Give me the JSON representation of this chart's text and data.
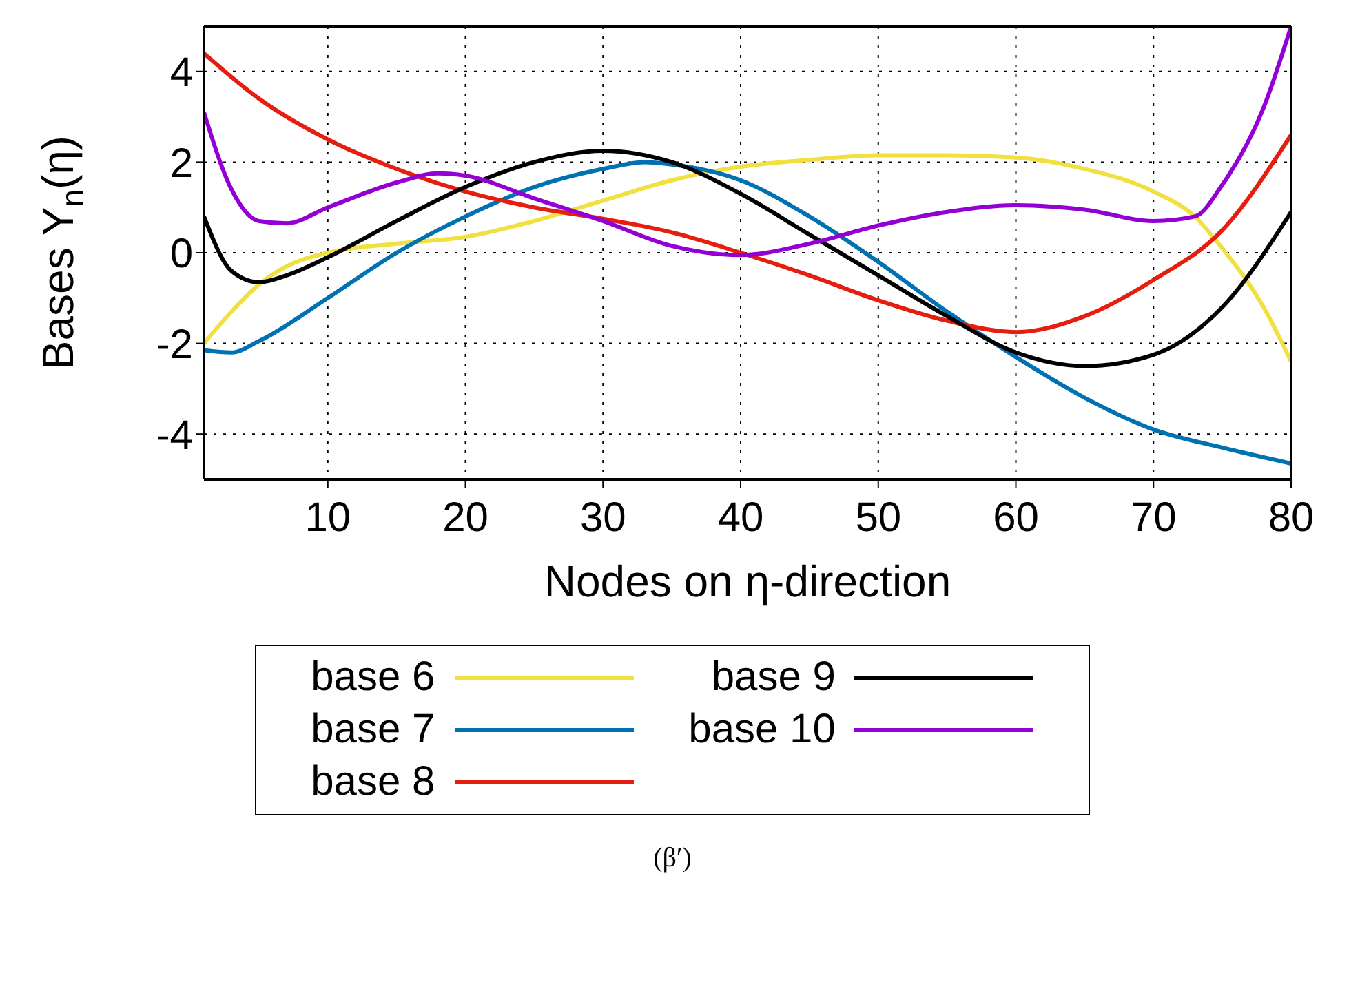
{
  "chart_data": {
    "type": "line",
    "xlabel": "Nodes on η-direction",
    "ylabel": "Bases Y$_{n}$(η)",
    "xlim": [
      1,
      80
    ],
    "xticks": [
      10,
      20,
      30,
      40,
      50,
      60,
      70,
      80
    ],
    "ylim": [
      -5,
      5
    ],
    "yticks": [
      -4,
      -2,
      0,
      2,
      4
    ],
    "grid": true,
    "legend": "bottom",
    "marker": "none",
    "line_style": "solid",
    "annotations": [
      "(β′)"
    ],
    "series": [
      {
        "name": "base 6",
        "color": "#f0e040",
        "x": [
          1,
          3,
          5,
          7,
          10,
          15,
          20,
          25,
          30,
          35,
          40,
          45,
          50,
          55,
          60,
          65,
          70,
          73,
          75,
          78,
          80
        ],
        "values": [
          -2,
          -1.3,
          -0.7,
          -0.3,
          0,
          0.2,
          0.35,
          0.7,
          1.15,
          1.6,
          1.9,
          2.05,
          2.15,
          2.15,
          2.1,
          1.85,
          1.35,
          0.8,
          0.1,
          -1.2,
          -2.4
        ]
      },
      {
        "name": "base 7",
        "color": "#0072b2",
        "x": [
          1,
          3,
          5,
          10,
          15,
          20,
          25,
          30,
          33,
          35,
          40,
          45,
          50,
          55,
          60,
          65,
          70,
          75,
          80
        ],
        "values": [
          -2.15,
          -2.2,
          -1.95,
          -1,
          0,
          0.8,
          1.45,
          1.85,
          2,
          1.95,
          1.6,
          0.8,
          -0.2,
          -1.3,
          -2.3,
          -3.2,
          -3.9,
          -4.3,
          -4.65
        ]
      },
      {
        "name": "base 8",
        "color": "#e51e10",
        "x": [
          1,
          5,
          10,
          15,
          20,
          25,
          30,
          35,
          40,
          45,
          50,
          55,
          60,
          65,
          70,
          75,
          80
        ],
        "values": [
          4.4,
          3.4,
          2.5,
          1.85,
          1.35,
          1,
          0.75,
          0.45,
          0,
          -0.5,
          -1.05,
          -1.5,
          -1.75,
          -1.4,
          -0.6,
          0.5,
          2.6
        ]
      },
      {
        "name": "base 9",
        "color": "#000000",
        "x": [
          1,
          3,
          5,
          7,
          10,
          15,
          20,
          25,
          30,
          35,
          40,
          45,
          50,
          55,
          60,
          65,
          70,
          75,
          80
        ],
        "values": [
          0.8,
          -0.4,
          -0.65,
          -0.5,
          -0.1,
          0.7,
          1.45,
          2,
          2.25,
          2,
          1.3,
          0.4,
          -0.5,
          -1.4,
          -2.2,
          -2.5,
          -2.25,
          -1.2,
          0.9
        ]
      },
      {
        "name": "base 10",
        "color": "#9400d3",
        "x": [
          1,
          3,
          5,
          7,
          10,
          15,
          18,
          20,
          25,
          30,
          35,
          40,
          45,
          50,
          55,
          60,
          65,
          70,
          73,
          75,
          78,
          80
        ],
        "values": [
          3.1,
          1.4,
          0.7,
          0.65,
          1,
          1.55,
          1.75,
          1.7,
          1.2,
          0.7,
          0.15,
          -0.05,
          0.2,
          0.6,
          0.9,
          1.05,
          0.95,
          0.7,
          0.8,
          1.5,
          3.2,
          5
        ]
      }
    ]
  }
}
